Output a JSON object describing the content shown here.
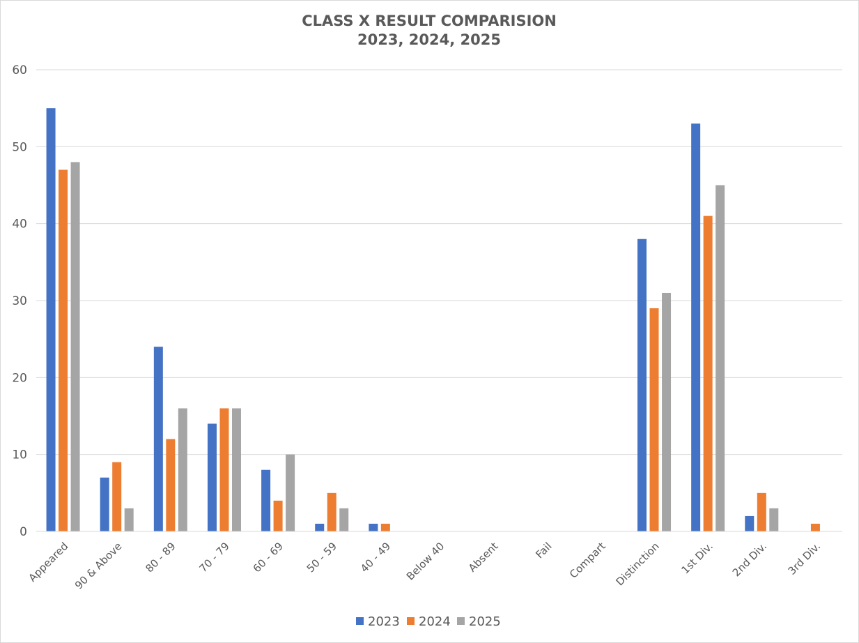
{
  "chart_data": {
    "type": "bar",
    "title_lines": [
      "CLASS X RESULT COMPARISION",
      "2023, 2024, 2025"
    ],
    "categories": [
      "Appeared",
      "90 & Above",
      "80 - 89",
      "70 - 79",
      "60 - 69",
      "50 - 59",
      "40 - 49",
      "Below 40",
      "Absent",
      "Fail",
      "Compart",
      "Distinction",
      "1st Div.",
      "2nd Div.",
      "3rd Div."
    ],
    "series": [
      {
        "name": "2023",
        "color": "#4472c4",
        "values": [
          55,
          7,
          24,
          14,
          8,
          1,
          1,
          0,
          0,
          0,
          0,
          38,
          53,
          2,
          0
        ]
      },
      {
        "name": "2024",
        "color": "#ed7d31",
        "values": [
          47,
          9,
          12,
          16,
          4,
          5,
          1,
          0,
          0,
          0,
          0,
          29,
          41,
          5,
          1
        ]
      },
      {
        "name": "2025",
        "color": "#a5a5a5",
        "values": [
          48,
          3,
          16,
          16,
          10,
          3,
          0,
          0,
          0,
          0,
          0,
          31,
          45,
          3,
          0
        ]
      }
    ],
    "ylim": [
      0,
      60
    ],
    "yticks": [
      0,
      10,
      20,
      30,
      40,
      50,
      60
    ],
    "grid": true,
    "legend_position": "bottom"
  }
}
